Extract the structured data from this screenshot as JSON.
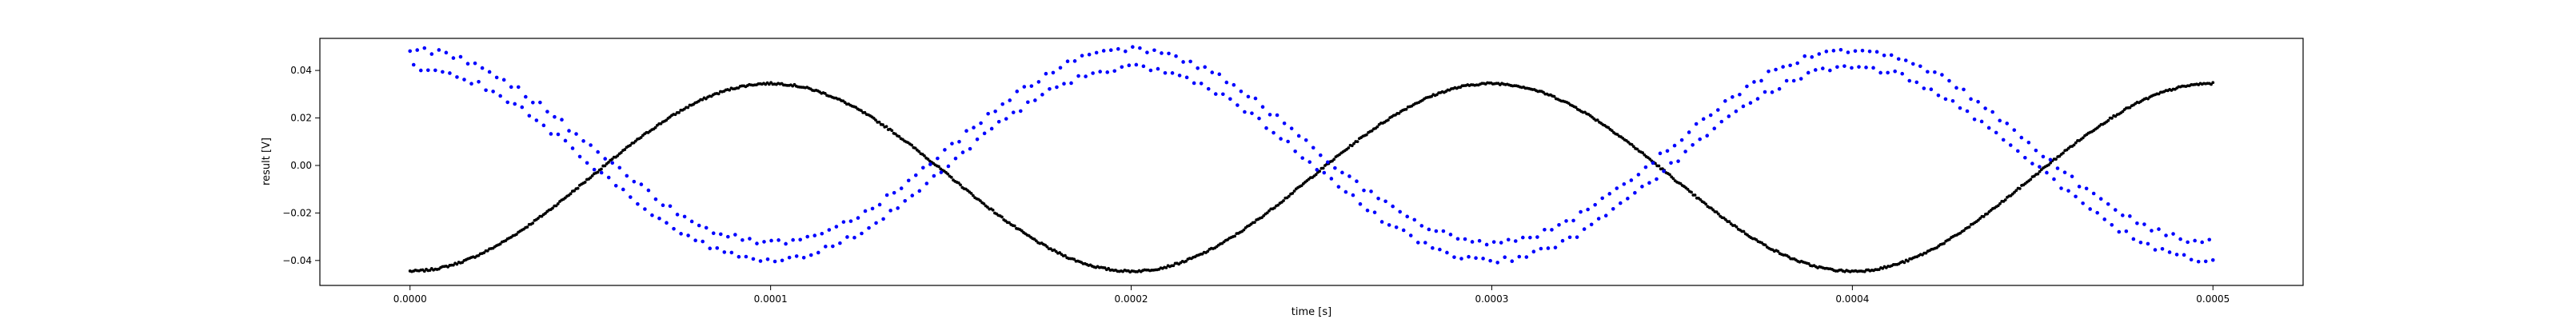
{
  "chart_data": {
    "type": "scatter",
    "title": "",
    "xlabel": "time [s]",
    "ylabel": "result [V]",
    "xlim": [
      -2.5e-05,
      0.000525
    ],
    "ylim": [
      -0.0505,
      0.0535
    ],
    "x_ticks": [
      0.0,
      0.0001,
      0.0002,
      0.0003,
      0.0004,
      0.0005
    ],
    "x_tick_labels": [
      "0.0000",
      "0.0001",
      "0.0002",
      "0.0003",
      "0.0004",
      "0.0005"
    ],
    "y_ticks": [
      -0.04,
      -0.02,
      0.0,
      0.02,
      0.04
    ],
    "y_tick_labels": [
      "−0.04",
      "−0.02",
      "0.00",
      "0.02",
      "0.04"
    ],
    "grid": false,
    "legend": "none",
    "series": [
      {
        "color": "#000000",
        "marker": "dot",
        "x_range": [
          0.0,
          0.0005
        ],
        "points": 1000,
        "model": "offset + amplitude * sin(2*pi*frequency*t + phase)",
        "frequency": 5000,
        "offset": -0.005,
        "amplitude": 0.0395,
        "phase": -1.5708,
        "noise": 0.0004
      },
      {
        "color": "#0000ff",
        "marker": "dot",
        "x_range": [
          0.0,
          0.0005
        ],
        "points": 500,
        "model": "offset + amplitude * sin(2*pi*frequency*t + phase), two alternating traces",
        "frequency": 5000,
        "offset": 0.0045,
        "amplitude": 0.0405,
        "phase": 1.5708,
        "trace_split": 0.0075,
        "noise": 0.0012
      }
    ]
  }
}
